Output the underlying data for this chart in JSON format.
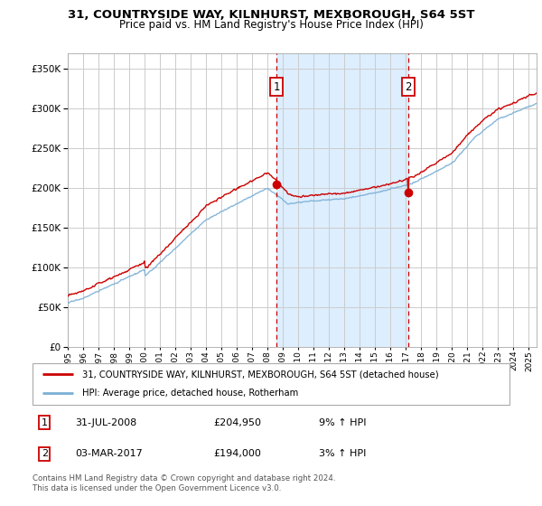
{
  "title": "31, COUNTRYSIDE WAY, KILNHURST, MEXBOROUGH, S64 5ST",
  "subtitle": "Price paid vs. HM Land Registry's House Price Index (HPI)",
  "legend_line1": "31, COUNTRYSIDE WAY, KILNHURST, MEXBOROUGH, S64 5ST (detached house)",
  "legend_line2": "HPI: Average price, detached house, Rotherham",
  "annotation1_label": "1",
  "annotation1_date": "31-JUL-2008",
  "annotation1_price": "£204,950",
  "annotation1_hpi": "9% ↑ HPI",
  "annotation1_year": 2008.58,
  "annotation1_value": 204950,
  "annotation2_label": "2",
  "annotation2_date": "03-MAR-2017",
  "annotation2_price": "£194,000",
  "annotation2_hpi": "3% ↑ HPI",
  "annotation2_year": 2017.17,
  "annotation2_value": 194000,
  "footer1": "Contains HM Land Registry data © Crown copyright and database right 2024.",
  "footer2": "This data is licensed under the Open Government Licence v3.0.",
  "red_color": "#cc0000",
  "blue_color": "#7aafd4",
  "shade_color": "#ddeeff",
  "grid_color": "#cccccc",
  "annotation_box_color": "#cc0000",
  "ylim_min": 0,
  "ylim_max": 370000,
  "xlim_min": 1995.0,
  "xlim_max": 2025.5
}
